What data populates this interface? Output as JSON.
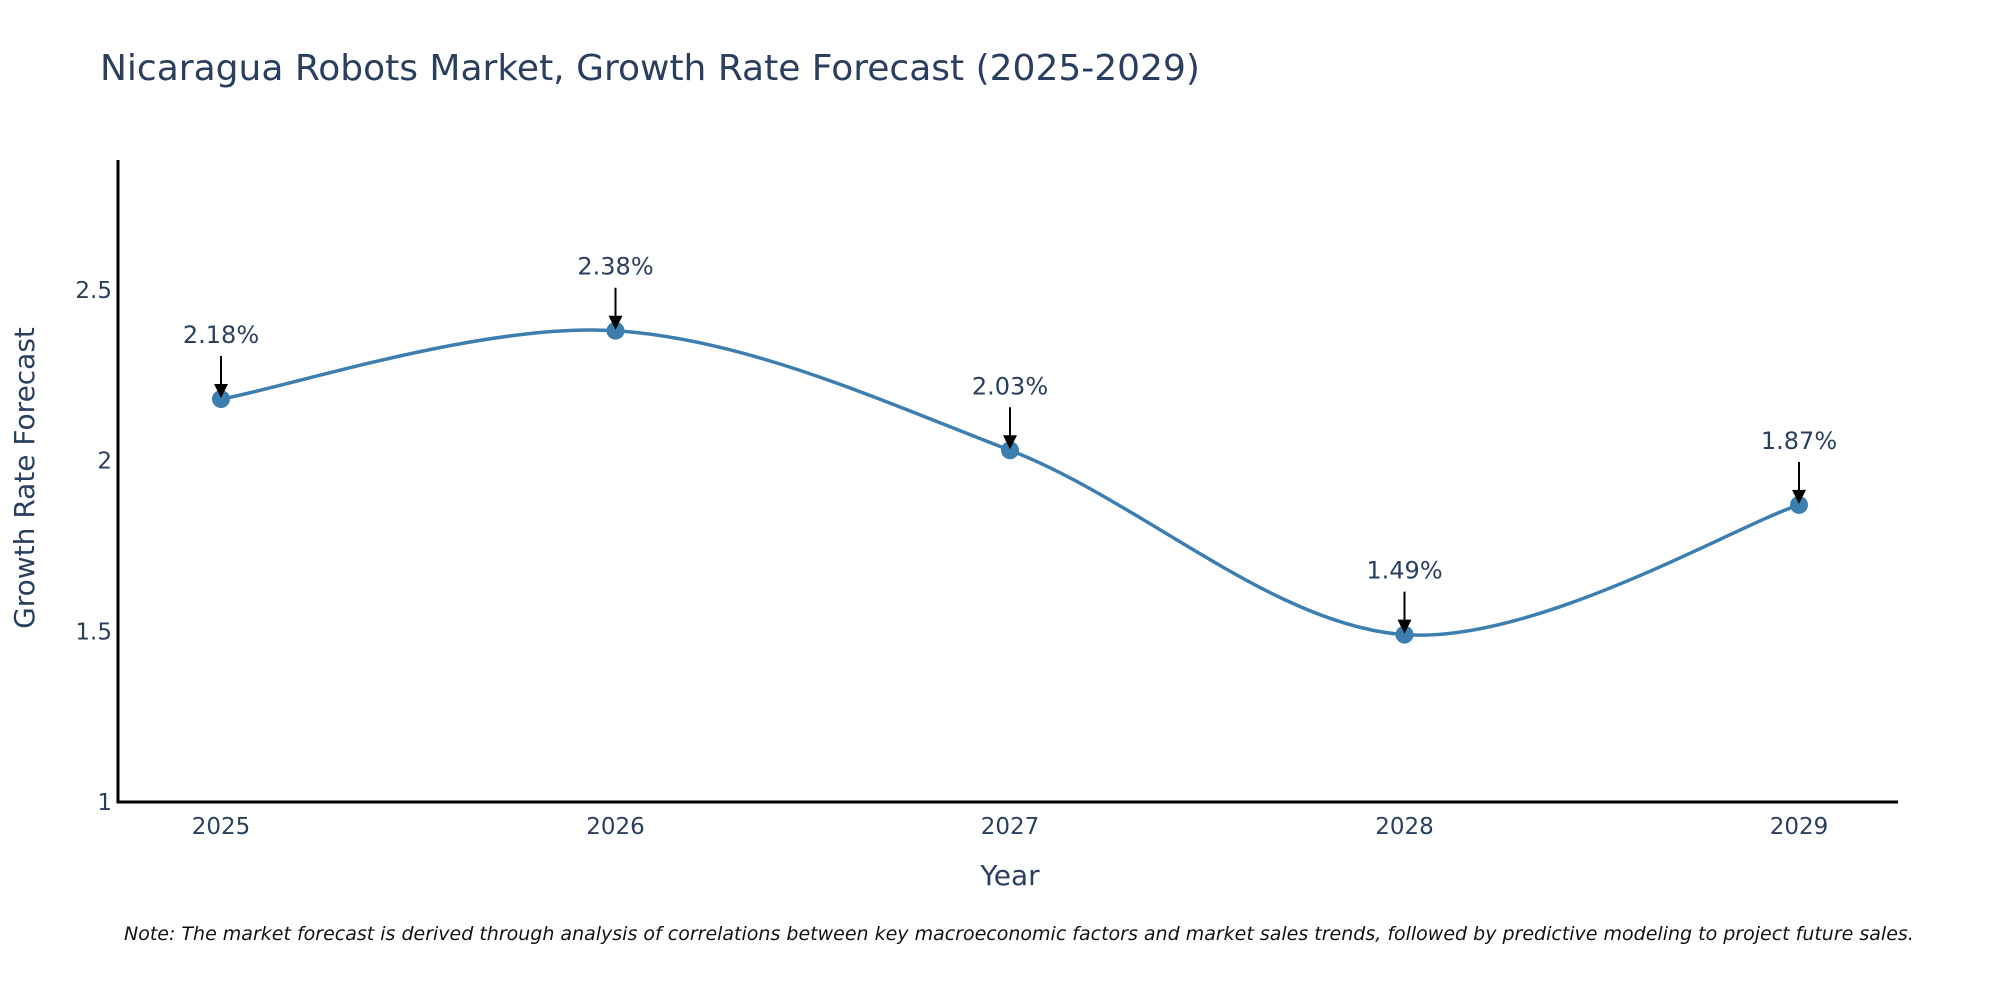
{
  "chart_data": {
    "type": "line",
    "title": "Nicaragua Robots Market, Growth Rate Forecast (2025-2029)",
    "xlabel": "Year",
    "ylabel": "Growth Rate Forecast",
    "categories": [
      "2025",
      "2026",
      "2027",
      "2028",
      "2029"
    ],
    "series": [
      {
        "name": "Growth Rate Forecast",
        "values": [
          2.18,
          2.38,
          2.03,
          1.49,
          1.87
        ],
        "labels": [
          "2.18%",
          "2.38%",
          "2.03%",
          "1.49%",
          "1.87%"
        ],
        "color": "#3d7eb0"
      }
    ],
    "yticks": [
      1,
      1.5,
      2,
      2.5
    ],
    "ytick_labels": [
      "1",
      "1.5",
      "2",
      "2.5"
    ],
    "ylim": [
      1,
      2.88
    ],
    "grid": false,
    "legend": "none",
    "note": "Note: The market forecast is derived through analysis of correlations between key macroeconomic factors and market sales trends, followed by predictive modeling to project future sales."
  }
}
